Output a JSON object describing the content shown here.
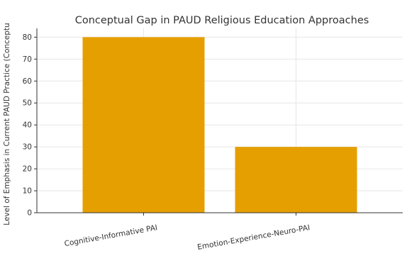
{
  "chart_data": {
    "type": "bar",
    "title": "Conceptual Gap in PAUD Religious Education Approaches",
    "xlabel": "",
    "ylabel": "Level of Emphasis in Current PAUD Practice (Conceptu",
    "categories": [
      "Cognitive-Informative PAI",
      "Emotion-Experience-Neuro-PAI"
    ],
    "values": [
      80,
      30
    ],
    "ylim": [
      0,
      84
    ],
    "yticks": [
      0,
      10,
      20,
      30,
      40,
      50,
      60,
      70,
      80
    ],
    "grid": true,
    "bar_color": "#e69f00",
    "legend": "none"
  }
}
